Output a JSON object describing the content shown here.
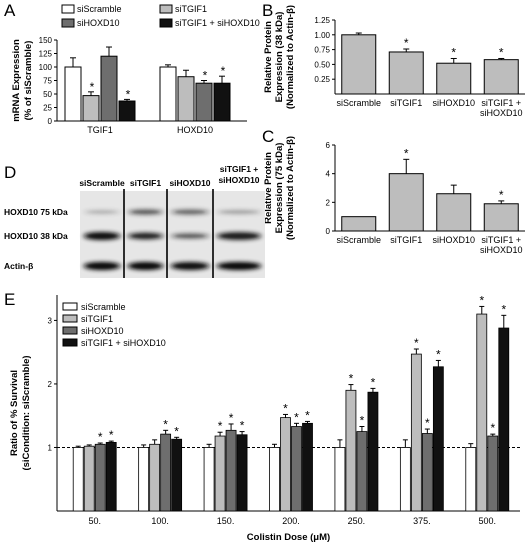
{
  "chart_data": [
    {
      "panel": "A",
      "type": "bar",
      "ylabel": "mRNA Expression\n(% of siScramble)",
      "ylim": [
        0,
        150
      ],
      "yticks": [
        0,
        25,
        50,
        75,
        100,
        125,
        150
      ],
      "categories": [
        "TGIF1",
        "HOXD10"
      ],
      "series": [
        {
          "name": "siScramble",
          "color": "#ffffff",
          "values": [
            100,
            100
          ],
          "errors": [
            17,
            4
          ],
          "stars": [
            false,
            false
          ]
        },
        {
          "name": "siTGIF1",
          "color": "#bdbdbd",
          "values": [
            47,
            82
          ],
          "errors": [
            7,
            12
          ],
          "stars": [
            true,
            false
          ]
        },
        {
          "name": "siHOXD10",
          "color": "#6e6e6e",
          "values": [
            120,
            70
          ],
          "errors": [
            17,
            5
          ],
          "stars": [
            false,
            true
          ]
        },
        {
          "name": "siTGIF1 + siHOXD10",
          "color": "#111111",
          "values": [
            37,
            70
          ],
          "errors": [
            3,
            13
          ],
          "stars": [
            true,
            true
          ]
        }
      ]
    },
    {
      "panel": "B",
      "type": "bar",
      "ylabel": "Relative Protein\nExpression (38 kDa)\n(Normalized to Actin-β)",
      "ylim": [
        0,
        1.25
      ],
      "yticks": [
        "0.25",
        "0.50",
        "0.75",
        "1.00",
        "1.25"
      ],
      "categories": [
        "siScramble",
        "siTGIF1",
        "siHOXD10",
        "siTGIF1 +\nsiHOXD10"
      ],
      "values": [
        1.0,
        0.71,
        0.52,
        0.58
      ],
      "errors": [
        0.03,
        0.05,
        0.08,
        0.02
      ],
      "stars": [
        false,
        true,
        true,
        true
      ]
    },
    {
      "panel": "C",
      "type": "bar",
      "ylabel": "Relative Protein\nExpression (75 kDa)\n(Normalized to Actin-β)",
      "ylim": [
        0,
        6
      ],
      "yticks": [
        0,
        2,
        4,
        6
      ],
      "categories": [
        "siScramble",
        "siTGIF1",
        "siHOXD10",
        "siTGIF1 +\nsiHOXD10"
      ],
      "values": [
        1.0,
        4.0,
        2.6,
        1.9
      ],
      "errors": [
        0.0,
        1.0,
        0.6,
        0.2
      ],
      "stars": [
        false,
        true,
        false,
        true
      ]
    },
    {
      "panel": "E",
      "type": "bar",
      "ylabel": "Ratio of % Survival\n(siCondition: siScramble)",
      "xlabel": "Colistin Dose (μM)",
      "ylim": [
        0,
        3.4
      ],
      "yticks": [
        1,
        2,
        3
      ],
      "reference_line": 1,
      "categories": [
        "50.",
        "100.",
        "150.",
        "200.",
        "250.",
        "375.",
        "500."
      ],
      "series": [
        {
          "name": "siScramble",
          "color": "#ffffff",
          "values": [
            1.0,
            1.0,
            1.0,
            1.0,
            1.0,
            1.0,
            1.0
          ],
          "errors": [
            0.02,
            0.04,
            0.05,
            0.05,
            0.12,
            0.12,
            0.06
          ],
          "stars": [
            false,
            false,
            false,
            false,
            false,
            false,
            false
          ]
        },
        {
          "name": "siTGIF1",
          "color": "#bdbdbd",
          "values": [
            1.02,
            1.05,
            1.18,
            1.47,
            1.9,
            2.47,
            3.1
          ],
          "errors": [
            0.02,
            0.07,
            0.06,
            0.05,
            0.09,
            0.08,
            0.12
          ],
          "stars": [
            false,
            false,
            true,
            true,
            true,
            true,
            true
          ]
        },
        {
          "name": "siHOXD10",
          "color": "#6e6e6e",
          "values": [
            1.05,
            1.21,
            1.27,
            1.33,
            1.25,
            1.22,
            1.18
          ],
          "errors": [
            0.02,
            0.06,
            0.1,
            0.05,
            0.08,
            0.07,
            0.03
          ],
          "stars": [
            true,
            true,
            true,
            true,
            true,
            true,
            true
          ]
        },
        {
          "name": "siTGIF1 + siHOXD10",
          "color": "#111111",
          "values": [
            1.08,
            1.13,
            1.2,
            1.38,
            1.87,
            2.27,
            2.88
          ],
          "errors": [
            0.02,
            0.03,
            0.05,
            0.03,
            0.06,
            0.1,
            0.2
          ],
          "stars": [
            true,
            true,
            true,
            true,
            true,
            true,
            true
          ]
        }
      ]
    }
  ],
  "blot": {
    "panel": "D",
    "columns": [
      "siScramble",
      "siTGIF1",
      "siHOXD10",
      "siTGIF1 +\nsiHOXD10"
    ],
    "rows": [
      "HOXD10 75 kDa",
      "HOXD10 38 kDa",
      "Actin-β"
    ]
  },
  "panel_letters": [
    "A",
    "B",
    "C",
    "D",
    "E"
  ],
  "significance_mark": "*"
}
